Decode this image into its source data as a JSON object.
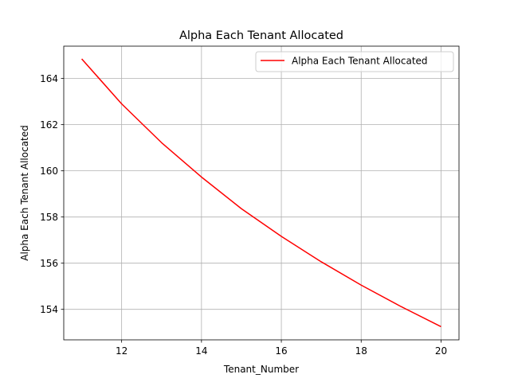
{
  "chart_data": {
    "type": "line",
    "title": "Alpha Each Tenant Allocated",
    "xlabel": "Tenant_Number",
    "ylabel": "Alpha Each Tenant Allocated",
    "xlim": [
      10.55,
      20.45
    ],
    "ylim": [
      152.68,
      165.4
    ],
    "x_ticks": [
      12,
      14,
      16,
      18,
      20
    ],
    "y_ticks": [
      154,
      156,
      158,
      160,
      162,
      164
    ],
    "grid": true,
    "legend_position": "top-right",
    "series": [
      {
        "name": "Alpha Each Tenant Allocated",
        "color": "#ff0000",
        "x": [
          11,
          12,
          13,
          14,
          15,
          16,
          17,
          18,
          19,
          20
        ],
        "y": [
          164.85,
          162.9,
          161.22,
          159.73,
          158.36,
          157.16,
          156.06,
          155.05,
          154.12,
          153.25
        ]
      }
    ]
  }
}
